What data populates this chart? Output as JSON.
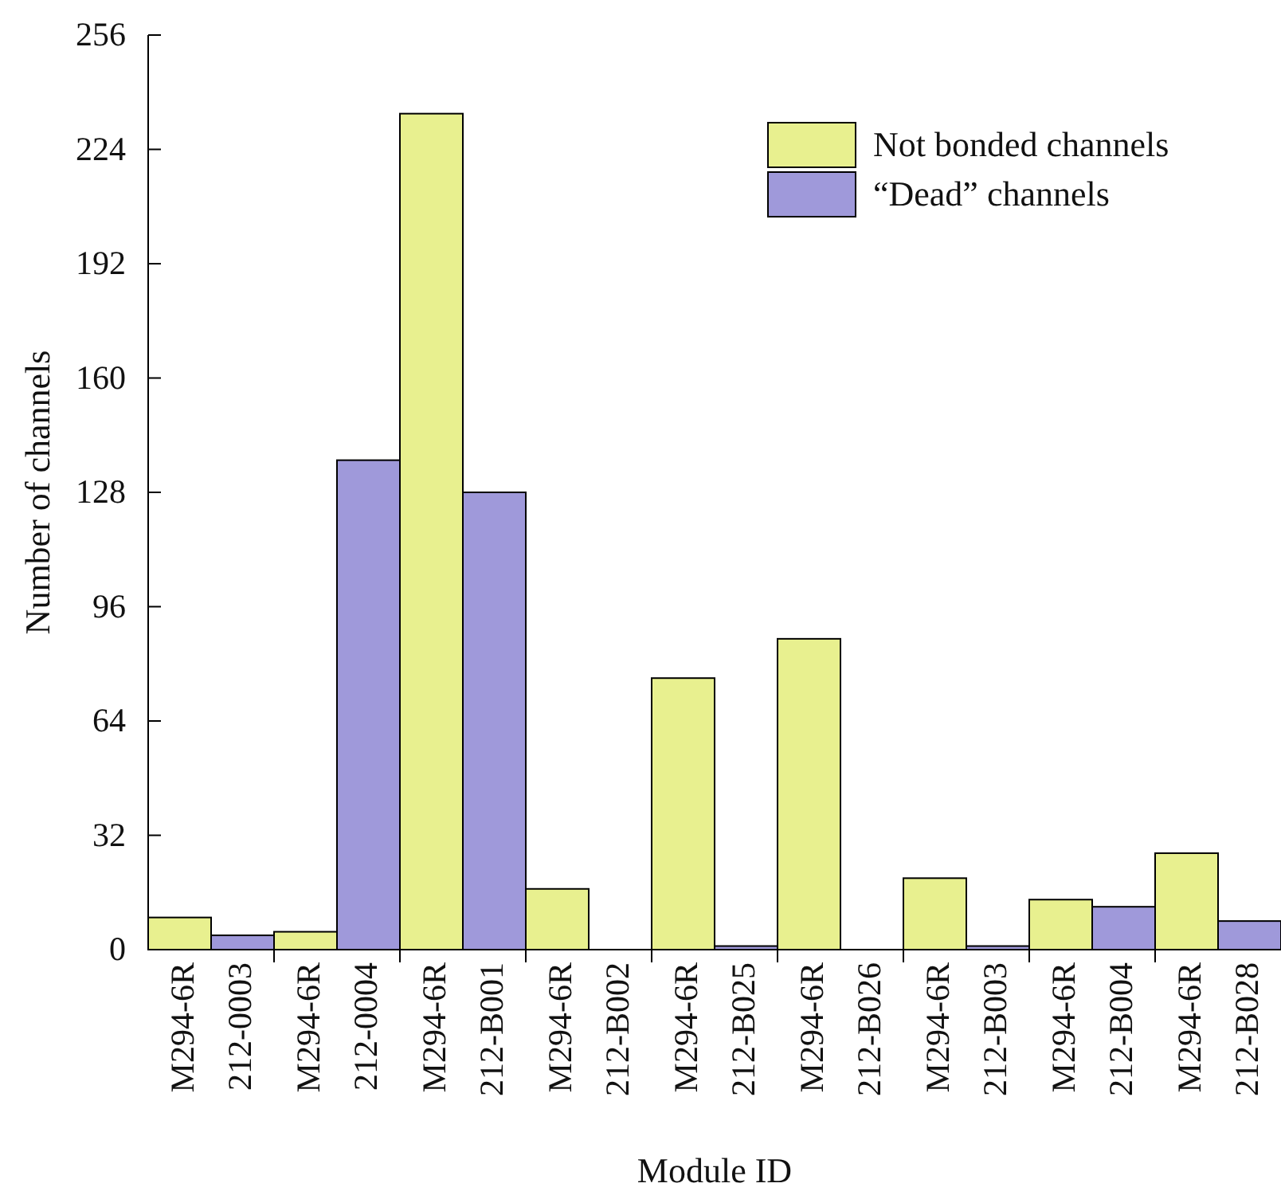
{
  "chart_data": {
    "type": "bar",
    "xlabel": "Module ID",
    "ylabel": "Number of channels",
    "categories": [
      "M294-6R 212-0003",
      "M294-6R 212-0004",
      "M294-6R 212-B001",
      "M294-6R 212-B002",
      "M294-6R 212-B025",
      "M294-6R 212-B026",
      "M294-6R 212-B003",
      "M294-6R 212-B004",
      "M294-6R 212-B028"
    ],
    "series": [
      {
        "name": "Not bonded channels",
        "color": "#e8f08f",
        "values": [
          9,
          5,
          234,
          17,
          76,
          87,
          20,
          14,
          27
        ]
      },
      {
        "name": "“Dead” channels",
        "color": "#9f99da",
        "values": [
          4,
          137,
          128,
          0,
          1,
          0,
          1,
          12,
          8
        ]
      }
    ],
    "ylim": [
      0,
      256
    ],
    "yticks": [
      0,
      32,
      64,
      96,
      128,
      160,
      192,
      224,
      256
    ],
    "legend": "top right"
  }
}
